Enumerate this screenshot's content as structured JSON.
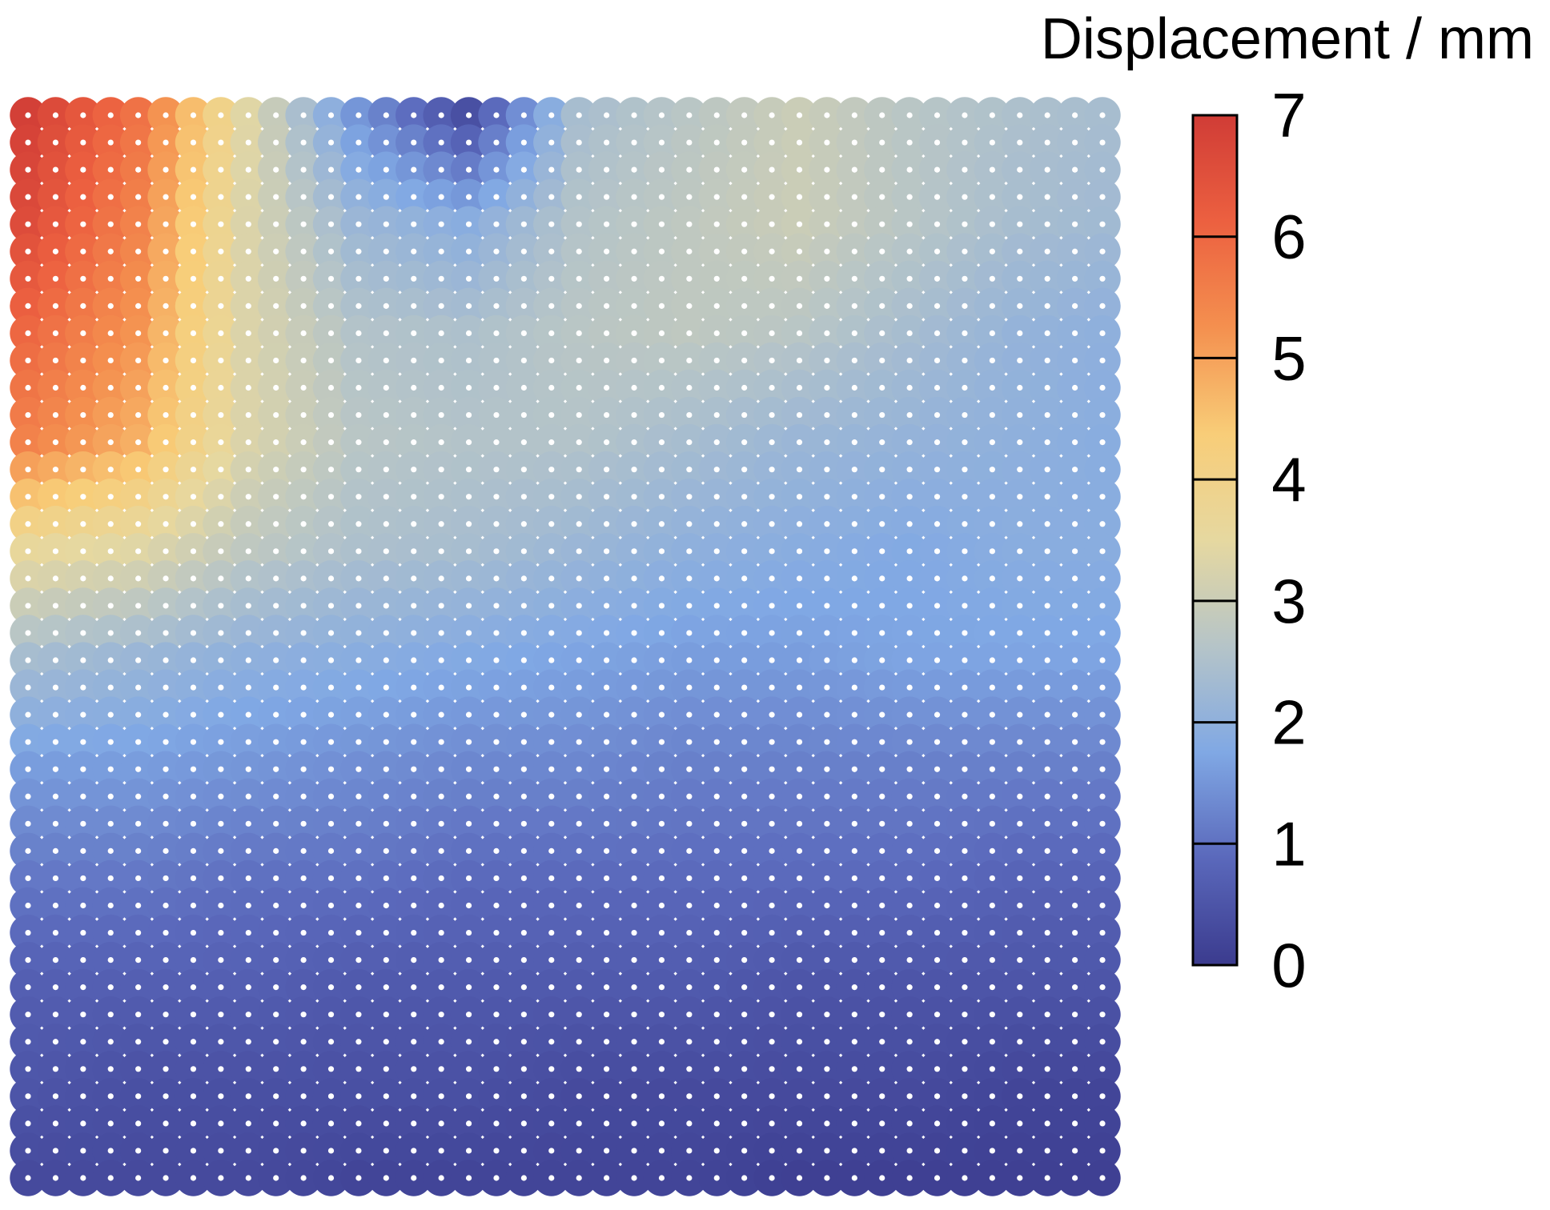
{
  "chart_data": {
    "type": "heatmap",
    "title": "",
    "xlabel": "",
    "ylabel": "",
    "grid": false,
    "colorbar": {
      "title": "Displacement / mm",
      "range": [
        0,
        7
      ],
      "ticks": [
        "7",
        "6",
        "5",
        "4",
        "3",
        "2",
        "1",
        "0"
      ],
      "tick_values": [
        7,
        6,
        5,
        4,
        3,
        2,
        1,
        0
      ],
      "colors": [
        "#3b3b8e",
        "#5a68bb",
        "#80a8e4",
        "#b5c4c8",
        "#e6d8a0",
        "#f8cd78",
        "#f4904f",
        "#ec6040",
        "#d03c36"
      ]
    },
    "grid_size": {
      "columns": 40,
      "rows": 40
    },
    "control_points": {
      "columns": [
        0,
        4,
        8,
        12,
        16,
        20,
        24,
        28,
        32,
        36,
        39
      ],
      "rows": [
        0,
        4,
        8,
        12,
        16,
        20,
        24,
        28,
        32,
        36,
        39
      ],
      "values": [
        [
          6.9,
          5.8,
          3.4,
          1.5,
          0.4,
          2.4,
          2.7,
          3.0,
          2.7,
          2.5,
          2.4
        ],
        [
          6.6,
          5.5,
          3.3,
          2.2,
          1.9,
          2.6,
          2.8,
          3.0,
          2.7,
          2.4,
          2.3
        ],
        [
          6.0,
          5.2,
          3.3,
          2.6,
          2.5,
          2.7,
          2.8,
          2.7,
          2.4,
          2.1,
          2.0
        ],
        [
          5.5,
          4.8,
          3.3,
          2.7,
          2.6,
          2.6,
          2.4,
          2.2,
          2.1,
          2.0,
          1.9
        ],
        [
          3.6,
          3.4,
          2.8,
          2.5,
          2.4,
          2.2,
          2.0,
          1.9,
          1.8,
          1.9,
          1.9
        ],
        [
          2.4,
          2.2,
          2.0,
          1.9,
          1.8,
          1.7,
          1.6,
          1.6,
          1.7,
          1.7,
          1.7
        ],
        [
          1.6,
          1.6,
          1.5,
          1.4,
          1.3,
          1.3,
          1.2,
          1.2,
          1.2,
          1.2,
          1.2
        ],
        [
          1.1,
          1.1,
          1.0,
          1.0,
          0.9,
          0.9,
          0.9,
          0.9,
          0.9,
          0.8,
          0.8
        ],
        [
          0.7,
          0.7,
          0.7,
          0.6,
          0.6,
          0.6,
          0.6,
          0.5,
          0.5,
          0.5,
          0.5
        ],
        [
          0.5,
          0.4,
          0.4,
          0.4,
          0.4,
          0.3,
          0.3,
          0.3,
          0.3,
          0.2,
          0.2
        ],
        [
          0.3,
          0.3,
          0.3,
          0.2,
          0.2,
          0.2,
          0.2,
          0.1,
          0.1,
          0.1,
          0.1
        ]
      ]
    }
  }
}
